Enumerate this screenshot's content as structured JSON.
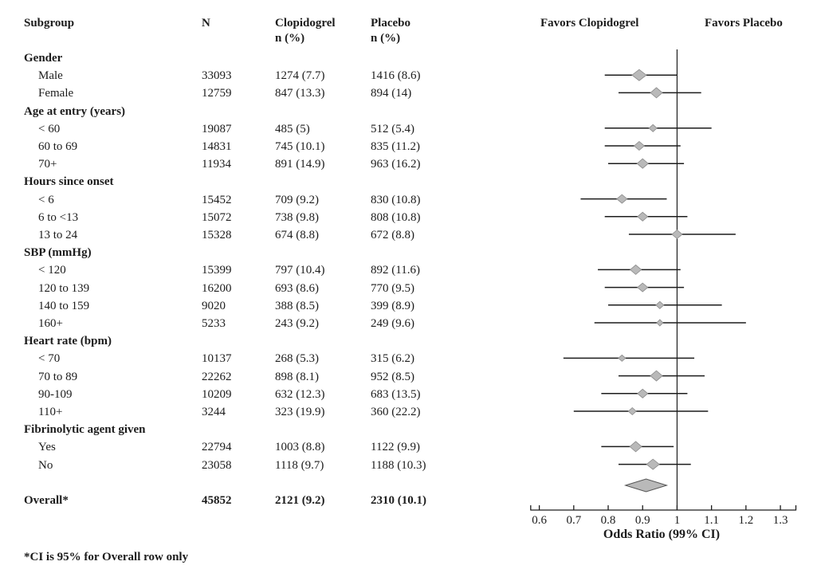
{
  "table": {
    "headers": {
      "subgroup": "Subgroup",
      "n": "N",
      "clopidogrel": "Clopidogrel",
      "placebo": "Placebo",
      "npct": "n (%)"
    }
  },
  "plot": {
    "favors_left": "Favors Clopidogrel",
    "favors_right": "Favors Placebo",
    "xlabel": "Odds Ratio (99% CI)"
  },
  "footnote": "*CI is 95% for Overall row only",
  "colors": {
    "line": "#1c1c1c",
    "diamond_fill": "#b9b9b9",
    "diamond_stroke": "#8a8a8a",
    "overall_diamond_stroke": "#555555"
  },
  "chart_data": {
    "type": "scatter",
    "variant": "forest-plot",
    "title": "",
    "xlabel": "Odds Ratio (99% CI)",
    "xlim": [
      0.55,
      1.36
    ],
    "xticks": [
      "0.6",
      "0.7",
      "0.8",
      "0.9",
      "1",
      "1.1",
      "1.2",
      "1.3"
    ],
    "reference_line": 1.0,
    "ci_note": "99% CI for subgroups; 95% CI for Overall row only",
    "columns": [
      "Subgroup",
      "N",
      "Clopidogrel n (%)",
      "Placebo n (%)"
    ],
    "rows": [
      {
        "type": "group",
        "label": "Gender"
      },
      {
        "type": "item",
        "label": "Male",
        "n": "33093",
        "clopidogrel": "1274 (7.7)",
        "placebo": "1416 (8.6)",
        "or": 0.89,
        "lo": 0.79,
        "hi": 1.0,
        "weight": 18
      },
      {
        "type": "item",
        "label": "Female",
        "n": "12759",
        "clopidogrel": "847 (13.3)",
        "placebo": "894 (14)",
        "or": 0.94,
        "lo": 0.83,
        "hi": 1.07,
        "weight": 15
      },
      {
        "type": "group",
        "label": "Age at entry (years)"
      },
      {
        "type": "item",
        "label": "< 60",
        "n": "19087",
        "clopidogrel": "485 (5)",
        "placebo": "512 (5.4)",
        "or": 0.93,
        "lo": 0.79,
        "hi": 1.1,
        "weight": 10
      },
      {
        "type": "item",
        "label": "60 to 69",
        "n": "14831",
        "clopidogrel": "745 (10.1)",
        "placebo": "835 (11.2)",
        "or": 0.89,
        "lo": 0.79,
        "hi": 1.01,
        "weight": 13
      },
      {
        "type": "item",
        "label": "70+",
        "n": "11934",
        "clopidogrel": "891 (14.9)",
        "placebo": "963 (16.2)",
        "or": 0.9,
        "lo": 0.8,
        "hi": 1.02,
        "weight": 14
      },
      {
        "type": "group",
        "label": "Hours since onset"
      },
      {
        "type": "item",
        "label": "< 6",
        "n": "15452",
        "clopidogrel": "709 (9.2)",
        "placebo": "830 (10.8)",
        "or": 0.84,
        "lo": 0.72,
        "hi": 0.97,
        "weight": 13
      },
      {
        "type": "item",
        "label": "6 to <13",
        "n": "15072",
        "clopidogrel": "738 (9.8)",
        "placebo": "808 (10.8)",
        "or": 0.9,
        "lo": 0.79,
        "hi": 1.03,
        "weight": 13
      },
      {
        "type": "item",
        "label": "13 to 24",
        "n": "15328",
        "clopidogrel": "674 (8.8)",
        "placebo": "672 (8.8)",
        "or": 1.0,
        "lo": 0.86,
        "hi": 1.17,
        "weight": 13
      },
      {
        "type": "group",
        "label": "SBP (mmHg)"
      },
      {
        "type": "item",
        "label": "< 120",
        "n": "15399",
        "clopidogrel": "797 (10.4)",
        "placebo": "892 (11.6)",
        "or": 0.88,
        "lo": 0.77,
        "hi": 1.01,
        "weight": 14
      },
      {
        "type": "item",
        "label": "120 to 139",
        "n": "16200",
        "clopidogrel": "693 (8.6)",
        "placebo": "770 (9.5)",
        "or": 0.9,
        "lo": 0.79,
        "hi": 1.02,
        "weight": 13
      },
      {
        "type": "item",
        "label": "140 to 159",
        "n": "9020",
        "clopidogrel": "388 (8.5)",
        "placebo": "399 (8.9)",
        "or": 0.95,
        "lo": 0.8,
        "hi": 1.13,
        "weight": 10
      },
      {
        "type": "item",
        "label": "160+",
        "n": "5233",
        "clopidogrel": "243 (9.2)",
        "placebo": "249 (9.6)",
        "or": 0.95,
        "lo": 0.76,
        "hi": 1.2,
        "weight": 8
      },
      {
        "type": "group",
        "label": "Heart rate (bpm)"
      },
      {
        "type": "item",
        "label": "< 70",
        "n": "10137",
        "clopidogrel": "268 (5.3)",
        "placebo": "315 (6.2)",
        "or": 0.84,
        "lo": 0.67,
        "hi": 1.05,
        "weight": 9
      },
      {
        "type": "item",
        "label": "70 to 89",
        "n": "22262",
        "clopidogrel": "898 (8.1)",
        "placebo": "952 (8.5)",
        "or": 0.94,
        "lo": 0.83,
        "hi": 1.08,
        "weight": 15
      },
      {
        "type": "item",
        "label": "90-109",
        "n": "10209",
        "clopidogrel": "632 (12.3)",
        "placebo": "683 (13.5)",
        "or": 0.9,
        "lo": 0.78,
        "hi": 1.03,
        "weight": 13
      },
      {
        "type": "item",
        "label": "110+",
        "n": "3244",
        "clopidogrel": "323 (19.9)",
        "placebo": "360 (22.2)",
        "or": 0.87,
        "lo": 0.7,
        "hi": 1.09,
        "weight": 10
      },
      {
        "type": "group",
        "label": "Fibrinolytic agent given"
      },
      {
        "type": "item",
        "label": "Yes",
        "n": "22794",
        "clopidogrel": "1003 (8.8)",
        "placebo": "1122 (9.9)",
        "or": 0.88,
        "lo": 0.78,
        "hi": 0.99,
        "weight": 15
      },
      {
        "type": "item",
        "label": "No",
        "n": "23058",
        "clopidogrel": "1118 (9.7)",
        "placebo": "1188 (10.3)",
        "or": 0.93,
        "lo": 0.83,
        "hi": 1.04,
        "weight": 16
      },
      {
        "type": "spacer"
      },
      {
        "type": "overall",
        "label": "Overall*",
        "n": "45852",
        "clopidogrel": "2121 (9.2)",
        "placebo": "2310 (10.1)",
        "or": 0.91,
        "lo": 0.85,
        "hi": 0.97
      }
    ]
  }
}
